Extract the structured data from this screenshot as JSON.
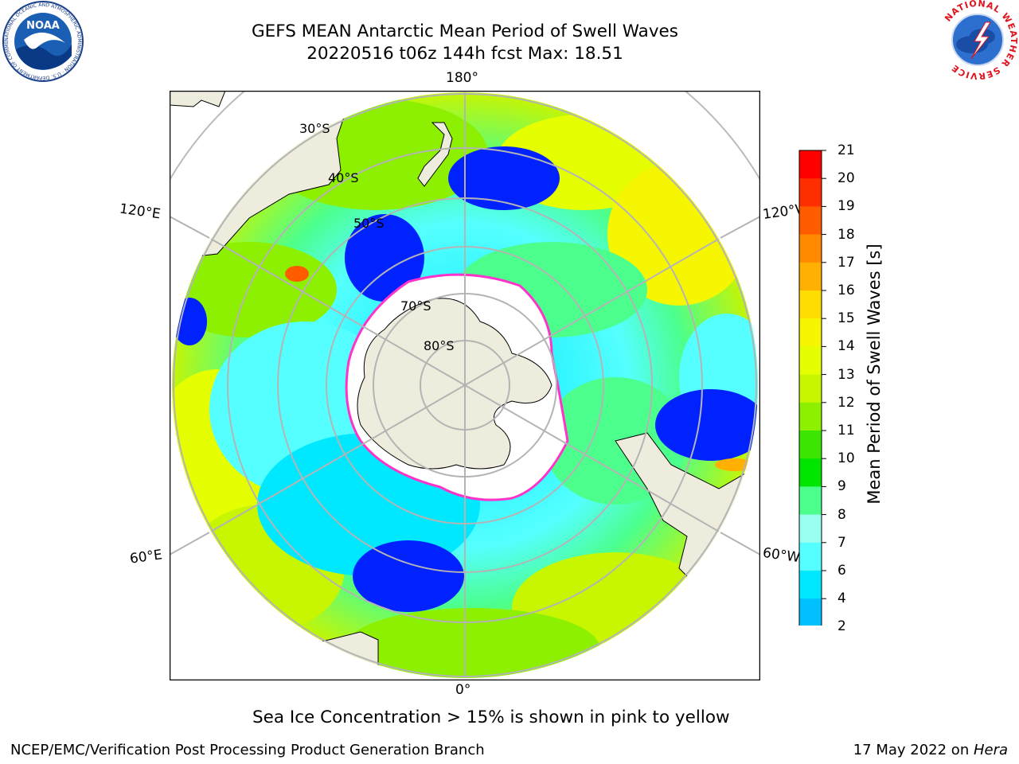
{
  "title": {
    "line1": "GEFS MEAN Antarctic Mean Period of Swell Waves",
    "line2": "20220516 t06z 144h fcst   Max: 18.51"
  },
  "longitude_labels": {
    "lon_180": "180°",
    "lon_0": "0°",
    "lon_120e": "120°E",
    "lon_120w": "120°W",
    "lon_60e": "60°E",
    "lon_60w": "60°W"
  },
  "latitude_labels": {
    "lat_30": "30°S",
    "lat_40": "40°S",
    "lat_50": "50°S",
    "lat_70": "70°S",
    "lat_80": "80°S"
  },
  "colorbar": {
    "label": "Mean Period of Swell Waves [s]",
    "ticks": [
      "21",
      "20",
      "19",
      "18",
      "17",
      "16",
      "15",
      "14",
      "13",
      "12",
      "11",
      "10",
      "9",
      "8",
      "7",
      "6",
      "4",
      "2"
    ],
    "colors": [
      "#ff0000",
      "#ff2e00",
      "#ff5c00",
      "#ff8a00",
      "#ffb000",
      "#ffdd00",
      "#f6f600",
      "#e6ff00",
      "#c8f500",
      "#8cf000",
      "#3ce600",
      "#00e600",
      "#4cff8c",
      "#99fff0",
      "#55ffff",
      "#00e8ff",
      "#00c0ff",
      "#0070ff"
    ],
    "under_color": "#0022ff"
  },
  "sea_ice_note": "Sea Ice Concentration > 15% is shown in pink to yellow",
  "footer": {
    "credit": "NCEP/EMC/Verification Post Processing Product Generation Branch",
    "date_prefix": "17 May 2022 on ",
    "machine": "Hera"
  },
  "logos": {
    "noaa": "NOAA",
    "noaa_ring": "NATIONAL OCEANIC AND ATMOSPHERIC ADMINISTRATION · U.S. DEPARTMENT OF COMMERCE",
    "nws_ring": "NATIONAL WEATHER SERVICE"
  },
  "colors": {
    "land": "#eeecdc",
    "ice": "#ffffff",
    "ice_edge": "#ff33cc",
    "grid": "#b4b4b4"
  }
}
